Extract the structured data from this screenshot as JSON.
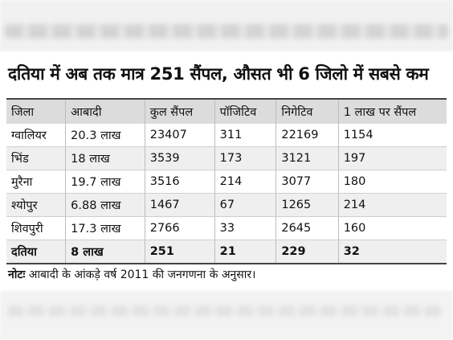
{
  "headline": "दतिया में अब तक मात्र 251 सैंपल, औसत भी 6 जिलो में सबसे कम",
  "columns": [
    "जिला",
    "आबादी",
    "कुल सैंपल",
    "पॉजिटिव",
    "निगेटिव",
    "1 लाख पर सैंपल"
  ],
  "rows": [
    [
      "ग्वालियर",
      "20.3 लाख",
      "23407",
      "311",
      "22169",
      "1154"
    ],
    [
      "भिंड",
      "18 लाख",
      "3539",
      "173",
      "3121",
      "197"
    ],
    [
      "मुरैना",
      "19.7 लाख",
      "3516",
      "214",
      "3077",
      "180"
    ],
    [
      "श्योपुर",
      "6.88 लाख",
      "1467",
      "67",
      "1265",
      "214"
    ],
    [
      "शिवपुरी",
      "17.3 लाख",
      "2766",
      "33",
      "2645",
      "160"
    ],
    [
      "दतिया",
      "8 लाख",
      "251",
      "21",
      "229",
      "32"
    ]
  ],
  "note": {
    "label": "नोटः",
    "text": " आबादी के आंकड़े वर्ष 2011 की जनगणना के अनुसार।"
  }
}
